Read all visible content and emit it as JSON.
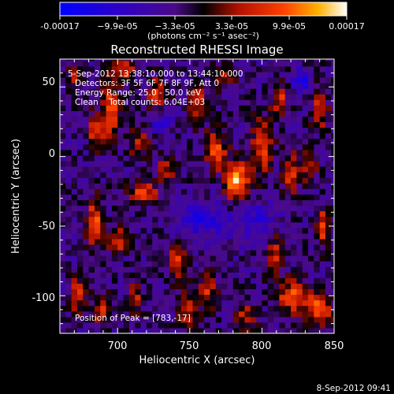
{
  "chart_data": {
    "type": "heatmap",
    "title": "Reconstructed RHESSI Image",
    "xlabel": "Heliocentric X (arcsec)",
    "ylabel": "Heliocentric Y (arcsec)",
    "xlim": [
      660,
      850
    ],
    "ylim": [
      -127,
      70
    ],
    "x_ticks": [
      700,
      750,
      800,
      850
    ],
    "y_ticks": [
      50,
      0,
      -50,
      -100
    ],
    "colorbar": {
      "min": -0.00017,
      "max": 0.00017,
      "tick_labels": [
        "-0.00017",
        "−9.9e-05",
        "−3.3e-05",
        "3.3e-05",
        "9.9e-05",
        "0.00017"
      ],
      "units": "(photons cm⁻² s⁻¹ asec⁻²)"
    },
    "annotations": [
      "5-Sep-2012 13:38:10.000 to 13:44:10.000",
      "Detectors: 3F 5F 6F 7F 8F 9F, Att 0",
      "Energy Range: 25.0 - 50.0 keV",
      "Clean    Total counts: 6.04E+03"
    ],
    "peak_label": "Position of Peak = [783,-17]",
    "peak": [
      783,
      -17
    ],
    "blobs": [
      {
        "x": 783,
        "y": -17,
        "amp": 0.00017,
        "sx": 6,
        "sy": 10
      },
      {
        "x": 768,
        "y": 5,
        "amp": 0.00013,
        "sx": 5,
        "sy": 9
      },
      {
        "x": 800,
        "y": 8,
        "amp": 0.00011,
        "sx": 5,
        "sy": 14
      },
      {
        "x": 820,
        "y": -12,
        "amp": 0.0001,
        "sx": 4,
        "sy": 10
      },
      {
        "x": 832,
        "y": -5,
        "amp": 0.0001,
        "sx": 4,
        "sy": 8
      },
      {
        "x": 718,
        "y": -25,
        "amp": 0.00011,
        "sx": 7,
        "sy": 6
      },
      {
        "x": 684,
        "y": -47,
        "amp": 0.00013,
        "sx": 4,
        "sy": 12
      },
      {
        "x": 700,
        "y": -60,
        "amp": 0.0001,
        "sx": 6,
        "sy": 6
      },
      {
        "x": 695,
        "y": 35,
        "amp": 0.00013,
        "sx": 4,
        "sy": 14
      },
      {
        "x": 705,
        "y": 62,
        "amp": 0.00011,
        "sx": 5,
        "sy": 6
      },
      {
        "x": 728,
        "y": 45,
        "amp": 0.0001,
        "sx": 5,
        "sy": 8
      },
      {
        "x": 756,
        "y": 38,
        "amp": 0.0001,
        "sx": 4,
        "sy": 10
      },
      {
        "x": 812,
        "y": 42,
        "amp": 0.0001,
        "sx": 4,
        "sy": 8
      },
      {
        "x": 685,
        "y": 18,
        "amp": 0.0001,
        "sx": 4,
        "sy": 10
      },
      {
        "x": 715,
        "y": 10,
        "amp": 9e-05,
        "sx": 5,
        "sy": 7
      },
      {
        "x": 735,
        "y": -8,
        "amp": 9e-05,
        "sx": 5,
        "sy": 6
      },
      {
        "x": 742,
        "y": -75,
        "amp": 0.0001,
        "sx": 5,
        "sy": 10
      },
      {
        "x": 748,
        "y": -110,
        "amp": 0.0001,
        "sx": 5,
        "sy": 9
      },
      {
        "x": 763,
        "y": -95,
        "amp": 9e-05,
        "sx": 4,
        "sy": 10
      },
      {
        "x": 788,
        "y": -115,
        "amp": 8e-05,
        "sx": 6,
        "sy": 8
      },
      {
        "x": 808,
        "y": -70,
        "amp": 9e-05,
        "sx": 4,
        "sy": 10
      },
      {
        "x": 822,
        "y": -100,
        "amp": 0.00013,
        "sx": 8,
        "sy": 8
      },
      {
        "x": 840,
        "y": -110,
        "amp": 0.00014,
        "sx": 6,
        "sy": 8
      },
      {
        "x": 842,
        "y": -50,
        "amp": 0.00011,
        "sx": 3,
        "sy": 10
      },
      {
        "x": 840,
        "y": 35,
        "amp": 9e-05,
        "sx": 4,
        "sy": 12
      },
      {
        "x": 672,
        "y": -100,
        "amp": 0.0001,
        "sx": 4,
        "sy": 10
      },
      {
        "x": 690,
        "y": -110,
        "amp": 9e-05,
        "sx": 5,
        "sy": 8
      },
      {
        "x": 712,
        "y": -102,
        "amp": 8e-05,
        "sx": 4,
        "sy": 8
      },
      {
        "x": 775,
        "y": 58,
        "amp": 8e-05,
        "sx": 5,
        "sy": 6
      },
      {
        "x": 670,
        "y": 58,
        "amp": 9e-05,
        "sx": 3,
        "sy": 6
      },
      {
        "x": 758,
        "y": -45,
        "amp": -9e-05,
        "sx": 12,
        "sy": 8
      },
      {
        "x": 828,
        "y": 55,
        "amp": -0.00012,
        "sx": 4,
        "sy": 5
      },
      {
        "x": 795,
        "y": -45,
        "amp": -6e-05,
        "sx": 10,
        "sy": 10
      },
      {
        "x": 730,
        "y": 25,
        "amp": -6e-05,
        "sx": 6,
        "sy": 6
      }
    ]
  },
  "footer": {
    "timestamp": "8-Sep-2012 09:41"
  }
}
